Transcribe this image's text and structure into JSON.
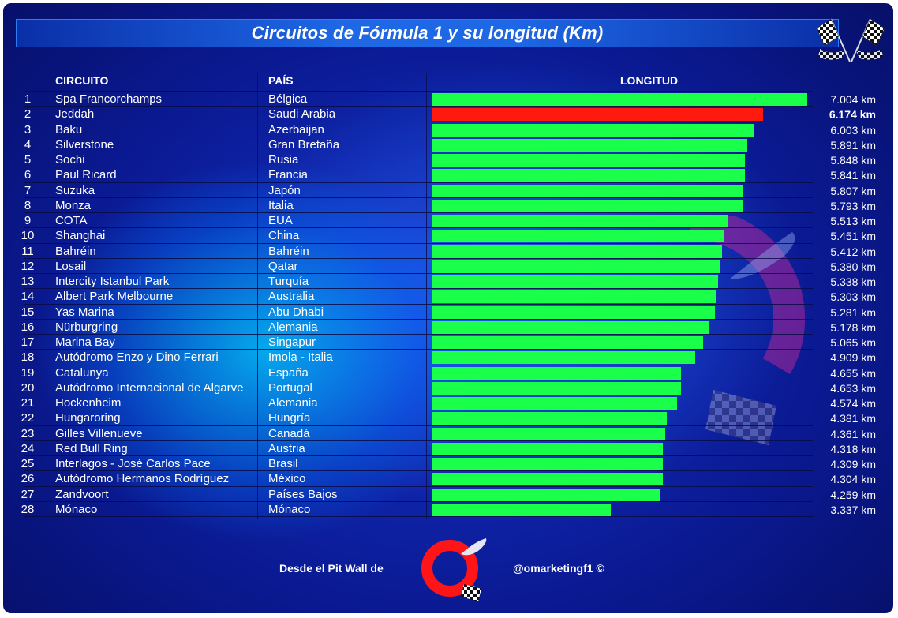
{
  "title": "Circuitos de Fórmula 1 y su longitud (Km)",
  "headers": {
    "circuit": "CIRCUITO",
    "country": "PAÍS",
    "length": "LONGITUD"
  },
  "colors": {
    "bar": "#1aff4a",
    "highlight_bar": "#ff1a10",
    "background": "#0a1990"
  },
  "icons": [
    "checkered-flags-icon",
    "watermark-logo-icon",
    "logo-icon"
  ],
  "chart_data": {
    "type": "bar",
    "orientation": "horizontal",
    "title": "Circuitos de Fórmula 1 y su longitud (Km)",
    "unit": "km",
    "xlim": [
      0,
      7.004
    ],
    "highlighted": "Jeddah",
    "rows": [
      {
        "rank": "1",
        "circuit": "Spa Francorchamps",
        "country": "Bélgica",
        "value": 7.004,
        "label": "7.004 km"
      },
      {
        "rank": "2",
        "circuit": "Jeddah",
        "country": "Saudi Arabia",
        "value": 6.174,
        "label": "6.174 km",
        "highlight": true
      },
      {
        "rank": "3",
        "circuit": "Baku",
        "country": "Azerbaijan",
        "value": 6.003,
        "label": "6.003 km"
      },
      {
        "rank": "4",
        "circuit": "Silverstone",
        "country": "Gran Bretaña",
        "value": 5.891,
        "label": "5.891 km"
      },
      {
        "rank": "5",
        "circuit": "Sochi",
        "country": "Rusia",
        "value": 5.848,
        "label": "5.848 km"
      },
      {
        "rank": "6",
        "circuit": "Paul Ricard",
        "country": "Francia",
        "value": 5.841,
        "label": "5.841 km"
      },
      {
        "rank": "7",
        "circuit": "Suzuka",
        "country": "Japón",
        "value": 5.807,
        "label": "5.807 km"
      },
      {
        "rank": "8",
        "circuit": "Monza",
        "country": "Italia",
        "value": 5.793,
        "label": "5.793 km"
      },
      {
        "rank": "9",
        "circuit": "COTA",
        "country": "EUA",
        "value": 5.513,
        "label": "5.513 km"
      },
      {
        "rank": "10",
        "circuit": "Shanghai",
        "country": "China",
        "value": 5.451,
        "label": "5.451 km"
      },
      {
        "rank": "11",
        "circuit": "Bahréin",
        "country": "Bahréin",
        "value": 5.412,
        "label": "5.412 km"
      },
      {
        "rank": "12",
        "circuit": "Losail",
        "country": "Qatar",
        "value": 5.38,
        "label": "5.380 km"
      },
      {
        "rank": "13",
        "circuit": "Intercity Istanbul Park",
        "country": "Turquía",
        "value": 5.338,
        "label": "5.338 km"
      },
      {
        "rank": "14",
        "circuit": "Albert Park Melbourne",
        "country": "Australia",
        "value": 5.303,
        "label": "5.303 km"
      },
      {
        "rank": "15",
        "circuit": "Yas Marina",
        "country": "Abu Dhabi",
        "value": 5.281,
        "label": "5.281 km"
      },
      {
        "rank": "16",
        "circuit": "Nürburgring",
        "country": "Alemania",
        "value": 5.178,
        "label": "5.178 km"
      },
      {
        "rank": "17",
        "circuit": "Marina Bay",
        "country": "Singapur",
        "value": 5.065,
        "label": "5.065 km"
      },
      {
        "rank": "18",
        "circuit": "Autódromo Enzo y Dino Ferrari",
        "country": "Imola - Italia",
        "value": 4.909,
        "label": "4.909 km"
      },
      {
        "rank": "19",
        "circuit": "Catalunya",
        "country": "España",
        "value": 4.655,
        "label": "4.655 km"
      },
      {
        "rank": "20",
        "circuit": "Autódromo Internacional de Algarve",
        "country": "Portugal",
        "value": 4.653,
        "label": "4.653 km"
      },
      {
        "rank": "21",
        "circuit": "Hockenheim",
        "country": "Alemania",
        "value": 4.574,
        "label": "4.574 km"
      },
      {
        "rank": "22",
        "circuit": "Hungaroring",
        "country": "Hungría",
        "value": 4.381,
        "label": "4.381 km"
      },
      {
        "rank": "23",
        "circuit": "Gilles Villenueve",
        "country": "Canadá",
        "value": 4.361,
        "label": "4.361 km"
      },
      {
        "rank": "24",
        "circuit": "Red Bull Ring",
        "country": "Austria",
        "value": 4.318,
        "label": "4.318 km"
      },
      {
        "rank": "25",
        "circuit": "Interlagos - José Carlos Pace",
        "country": "Brasil",
        "value": 4.309,
        "label": "4.309 km"
      },
      {
        "rank": "26",
        "circuit": "Autódromo Hermanos Rodríguez",
        "country": "México",
        "value": 4.304,
        "label": "4.304 km"
      },
      {
        "rank": "27",
        "circuit": "Zandvoort",
        "country": "Países Bajos",
        "value": 4.259,
        "label": "4.259 km"
      },
      {
        "rank": "28",
        "circuit": "Mónaco",
        "country": "Mónaco",
        "value": 3.337,
        "label": "3.337 km"
      }
    ]
  },
  "footer": {
    "left": "Desde el Pit Wall de",
    "right": "@omarketingf1 ©"
  }
}
